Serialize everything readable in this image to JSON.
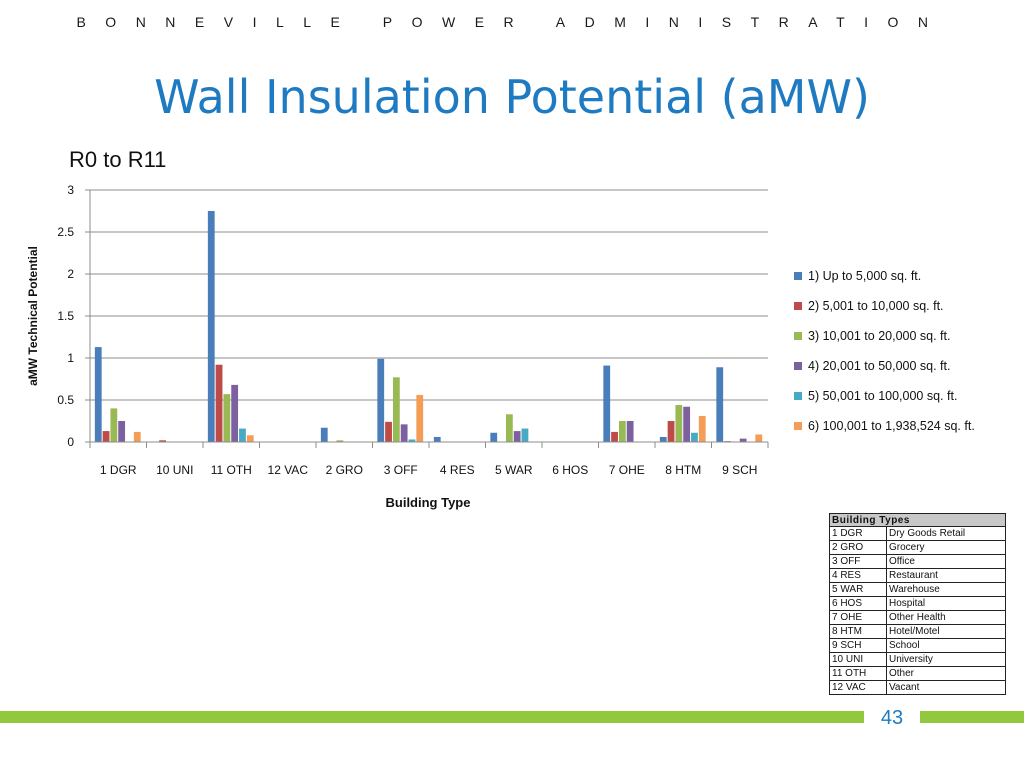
{
  "header": {
    "org": "BONNEVILLE POWER ADMINISTRATION",
    "title": "Wall Insulation Potential (aMW)"
  },
  "chart_data": {
    "type": "bar",
    "title": "R0 to R11",
    "xlabel": "Building Type",
    "ylabel": "aMW Technical Potential",
    "ylim": [
      0,
      3
    ],
    "yticks": [
      "0",
      "0.5",
      "1",
      "1.5",
      "2",
      "2.5",
      "3"
    ],
    "grid": true,
    "legend_position": "right",
    "categories": [
      "1 DGR",
      "10 UNI",
      "11 OTH",
      "12 VAC",
      "2 GRO",
      "3 OFF",
      "4 RES",
      "5 WAR",
      "6 HOS",
      "7 OHE",
      "8 HTM",
      "9 SCH"
    ],
    "series": [
      {
        "name": "1) Up to 5,000 sq. ft.",
        "color": "#4a7ebb",
        "values": [
          1.13,
          0,
          2.75,
          0,
          0.17,
          0.99,
          0.06,
          0.11,
          0,
          0.91,
          0.06,
          0.89
        ]
      },
      {
        "name": "2) 5,001 to 10,000 sq. ft.",
        "color": "#be4b48",
        "values": [
          0.13,
          0.02,
          0.92,
          0,
          0,
          0.24,
          0,
          0,
          0,
          0.12,
          0.25,
          0.01
        ]
      },
      {
        "name": "3) 10,001 to 20,000 sq. ft.",
        "color": "#98b954",
        "values": [
          0.4,
          0,
          0.57,
          0,
          0.02,
          0.77,
          0,
          0.33,
          0,
          0.25,
          0.44,
          0
        ]
      },
      {
        "name": "4) 20,001 to 50,000 sq. ft.",
        "color": "#7d60a0",
        "values": [
          0.25,
          0,
          0.68,
          0,
          0,
          0.21,
          0,
          0.13,
          0,
          0.25,
          0.42,
          0.04
        ]
      },
      {
        "name": "5) 50,001 to 100,000 sq. ft.",
        "color": "#46aac5",
        "values": [
          0,
          0,
          0.16,
          0,
          0,
          0.03,
          0,
          0.16,
          0,
          0,
          0.11,
          0
        ]
      },
      {
        "name": "6) 100,001 to 1,938,524 sq. ft.",
        "color": "#f59d56",
        "values": [
          0.12,
          0,
          0.08,
          0,
          0,
          0.56,
          0,
          0,
          0,
          0,
          0.31,
          0.09
        ]
      }
    ]
  },
  "building_types": {
    "header": "Building Types",
    "rows": [
      [
        "1 DGR",
        "Dry Goods Retail"
      ],
      [
        "2 GRO",
        "Grocery"
      ],
      [
        "3 OFF",
        "Office"
      ],
      [
        "4 RES",
        "Restaurant"
      ],
      [
        "5 WAR",
        "Warehouse"
      ],
      [
        "6 HOS",
        "Hospital"
      ],
      [
        "7 OHE",
        "Other Health"
      ],
      [
        "8 HTM",
        "Hotel/Motel"
      ],
      [
        "9 SCH",
        "School"
      ],
      [
        "10 UNI",
        "University"
      ],
      [
        "11 OTH",
        "Other"
      ],
      [
        "12 VAC",
        "Vacant"
      ]
    ]
  },
  "footer": {
    "page_number": "43",
    "accent_color": "#92c83e"
  }
}
